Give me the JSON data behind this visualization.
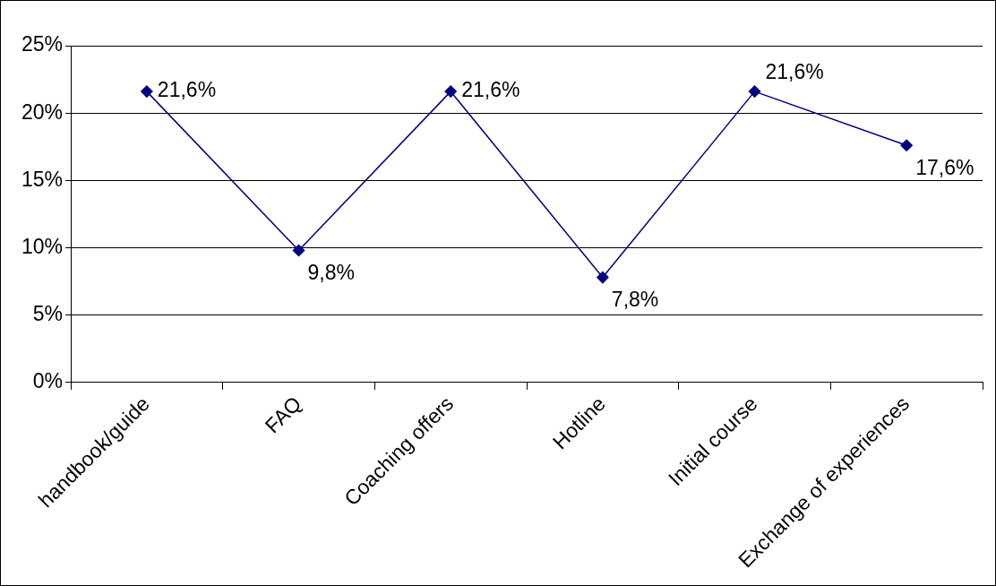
{
  "chart_data": {
    "type": "line",
    "categories": [
      "handbook/guide",
      "FAQ",
      "Coaching offers",
      "Hotline",
      "Initial course",
      "Exchange of experiences"
    ],
    "series": [
      {
        "color": "#000080",
        "values": [
          21.6,
          9.8,
          21.6,
          7.8,
          21.6,
          17.6
        ]
      }
    ],
    "value_labels": [
      "21,6%",
      "9,8%",
      "21,6%",
      "7,8%",
      "21,6%",
      "17,6%"
    ],
    "ylim": [
      0,
      25
    ],
    "yticks": [
      {
        "value": 0,
        "label": "0%"
      },
      {
        "value": 5,
        "label": "5%"
      },
      {
        "value": 10,
        "label": "10%"
      },
      {
        "value": 15,
        "label": "15%"
      },
      {
        "value": 20,
        "label": "20%"
      },
      {
        "value": 25,
        "label": "25%"
      }
    ],
    "grid": "y",
    "legend": false,
    "marker": "diamond",
    "line_style": "solid"
  }
}
